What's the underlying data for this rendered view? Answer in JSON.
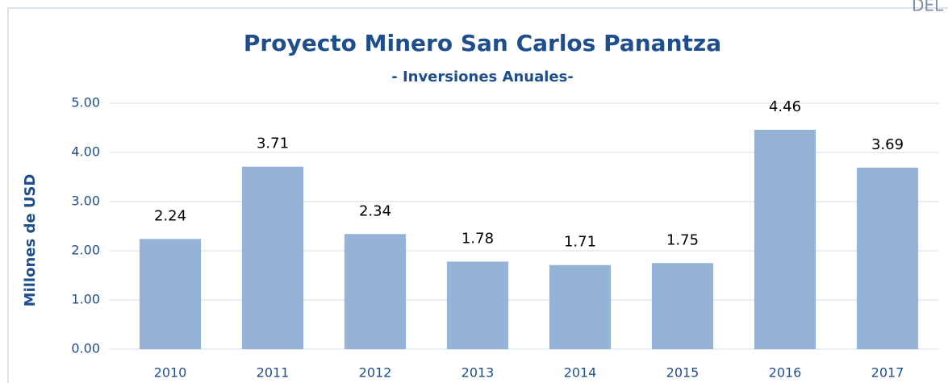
{
  "chart_data": {
    "type": "bar",
    "title": "Proyecto Minero San Carlos Panantza",
    "subtitle": "- Inversiones Anuales-",
    "ylabel": "Millones de USD",
    "corner_text": "DEL",
    "categories": [
      "2010",
      "2011",
      "2012",
      "2013",
      "2014",
      "2015",
      "2016",
      "2017"
    ],
    "values": [
      2.24,
      3.71,
      2.34,
      1.78,
      1.71,
      1.75,
      4.46,
      3.69
    ],
    "color": "#95b3d7",
    "ylim": [
      0,
      5
    ],
    "yticks": [
      {
        "value": 0,
        "label": "0.00"
      },
      {
        "value": 1,
        "label": "1.00"
      },
      {
        "value": 2,
        "label": "2.00"
      },
      {
        "value": 3,
        "label": "3.00"
      },
      {
        "value": 4,
        "label": "4.00"
      },
      {
        "value": 5,
        "label": "5.00"
      }
    ],
    "grid": true
  }
}
